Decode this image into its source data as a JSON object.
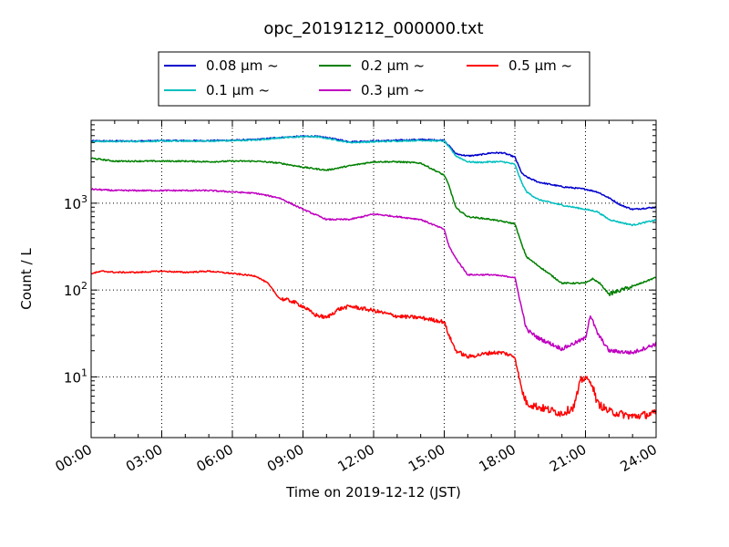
{
  "chart_data": {
    "type": "line",
    "title": "opc_20191212_000000.txt",
    "xlabel": "Time on 2019-12-12 (JST)",
    "ylabel": "Count / L",
    "yscale": "log",
    "ylim": [
      2,
      9000
    ],
    "xlim_hours": [
      0,
      24
    ],
    "grid": true,
    "grid_style": "dotted",
    "legend_location": "above plot, 3 columns",
    "x_tick_labels": [
      "00:00",
      "03:00",
      "06:00",
      "09:00",
      "12:00",
      "15:00",
      "18:00",
      "21:00",
      "24:00"
    ],
    "y_tick_labels": [
      {
        "value": 10,
        "base": "10",
        "exp": "1"
      },
      {
        "value": 100,
        "base": "10",
        "exp": "2"
      },
      {
        "value": 1000,
        "base": "10",
        "exp": "3"
      }
    ],
    "series": [
      {
        "name": "0.08 μm ~",
        "color": "#0000cc",
        "x": [
          0,
          1,
          2,
          3,
          4,
          5,
          6,
          7,
          8,
          9,
          9.5,
          10,
          11,
          12,
          13,
          14,
          15,
          15.5,
          16,
          16.5,
          17,
          17.5,
          18,
          18.3,
          18.5,
          19,
          20,
          21,
          21.5,
          22,
          22.5,
          23,
          24
        ],
        "y": [
          5200,
          5200,
          5200,
          5250,
          5250,
          5250,
          5300,
          5400,
          5700,
          5900,
          5900,
          5700,
          5100,
          5200,
          5300,
          5400,
          5300,
          3700,
          3500,
          3600,
          3800,
          3800,
          3400,
          2200,
          2000,
          1750,
          1550,
          1450,
          1350,
          1150,
          950,
          850,
          900
        ]
      },
      {
        "name": "0.1 μm ~",
        "color": "#00bfbf",
        "x": [
          0,
          1,
          2,
          3,
          4,
          5,
          6,
          7,
          8,
          9,
          9.5,
          10,
          11,
          12,
          13,
          14,
          15,
          15.5,
          16,
          16.5,
          17,
          17.5,
          18,
          18.3,
          18.5,
          19,
          20,
          21,
          21.5,
          22,
          22.5,
          23,
          24
        ],
        "y": [
          5150,
          5150,
          5150,
          5200,
          5200,
          5200,
          5250,
          5350,
          5650,
          5850,
          5850,
          5600,
          5000,
          5100,
          5200,
          5300,
          5200,
          3500,
          3000,
          2950,
          3000,
          3000,
          2800,
          1700,
          1350,
          1100,
          950,
          850,
          800,
          650,
          600,
          560,
          640
        ]
      },
      {
        "name": "0.2 μm ~",
        "color": "#008000",
        "x": [
          0,
          1,
          2,
          3,
          4,
          5,
          6,
          7,
          8,
          9,
          10,
          11,
          12,
          13,
          14,
          15,
          15.2,
          15.5,
          16,
          17,
          18,
          18.3,
          18.5,
          19,
          20,
          21,
          21.3,
          21.6,
          22,
          23,
          24
        ],
        "y": [
          3300,
          3050,
          3050,
          3050,
          3050,
          3000,
          3050,
          3050,
          2900,
          2600,
          2400,
          2700,
          3000,
          3000,
          2900,
          2100,
          1600,
          880,
          700,
          650,
          580,
          330,
          240,
          190,
          120,
          120,
          135,
          120,
          90,
          110,
          140
        ]
      },
      {
        "name": "0.3 μm ~",
        "color": "#bf00bf",
        "x": [
          0,
          1,
          2,
          3,
          4,
          5,
          6,
          7,
          8,
          9,
          10,
          11,
          12,
          13,
          14,
          15,
          15.2,
          15.5,
          16,
          17,
          18,
          18.3,
          18.5,
          19,
          20,
          21,
          21.2,
          21.5,
          22,
          23,
          24
        ],
        "y": [
          1450,
          1400,
          1400,
          1400,
          1400,
          1400,
          1350,
          1300,
          1150,
          850,
          650,
          650,
          750,
          700,
          650,
          500,
          320,
          230,
          150,
          150,
          140,
          60,
          35,
          28,
          21,
          28,
          52,
          32,
          20,
          19,
          24
        ]
      },
      {
        "name": "0.5 μm ~",
        "color": "#ff0000",
        "x": [
          0,
          0.5,
          1,
          2,
          3,
          4,
          5,
          6,
          6.5,
          7,
          7.5,
          8,
          8.5,
          9,
          9.5,
          10,
          10.5,
          11,
          12,
          13,
          14,
          15,
          15.2,
          15.5,
          16,
          16.5,
          17,
          17.5,
          18,
          18.3,
          18.5,
          19,
          20,
          20.5,
          20.8,
          21,
          21.3,
          21.5,
          22,
          23,
          24
        ],
        "y": [
          155,
          165,
          160,
          160,
          165,
          160,
          165,
          155,
          150,
          145,
          120,
          80,
          75,
          65,
          52,
          48,
          60,
          65,
          58,
          50,
          48,
          43,
          30,
          20,
          17,
          18,
          19,
          19,
          17,
          7,
          5,
          4.5,
          3.8,
          4.5,
          9,
          10,
          8,
          5,
          4,
          3.5,
          3.8
        ]
      }
    ]
  }
}
